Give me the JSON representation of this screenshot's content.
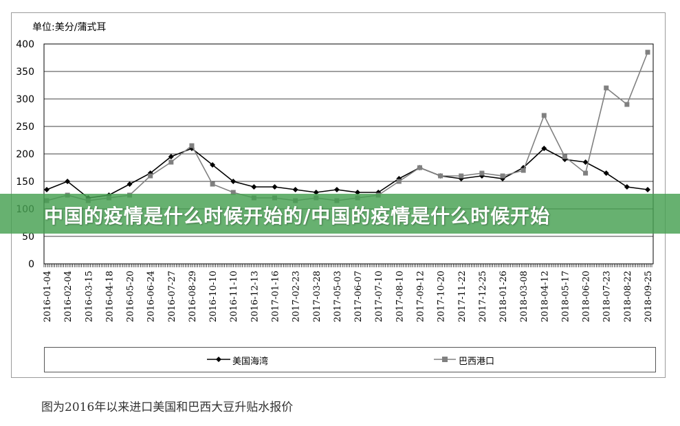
{
  "banner": {
    "text": "中国的疫情是什么时候开始的/中国的疫情是什么时候开始"
  },
  "caption": {
    "text": "图为2016年以来进口美国和巴西大豆升贴水报价"
  },
  "chart_data": {
    "type": "line",
    "unit_label": "单位:美分/蒲式耳",
    "ylim": [
      0,
      400
    ],
    "yticks": [
      0,
      50,
      100,
      150,
      200,
      250,
      300,
      350,
      400
    ],
    "grid": true,
    "legend_position": "bottom",
    "categories": [
      "2016-01-04",
      "2016-02-04",
      "2016-03-15",
      "2016-04-18",
      "2016-05-20",
      "2016-06-24",
      "2016-07-27",
      "2016-08-29",
      "2016-10-10",
      "2016-11-10",
      "2016-12-13",
      "2017-01-16",
      "2017-02-23",
      "2017-03-28",
      "2017-05-03",
      "2017-06-07",
      "2017-07-10",
      "2017-08-10",
      "2017-09-12",
      "2017-10-20",
      "2017-11-22",
      "2017-12-25",
      "2018-01-26",
      "2018-03-08",
      "2018-04-12",
      "2018-05-17",
      "2018-06-20",
      "2018-07-23",
      "2018-08-22",
      "2018-09-25"
    ],
    "series": [
      {
        "name": "美国海湾",
        "color": "#000000",
        "marker": "diamond",
        "values": [
          135,
          150,
          120,
          125,
          145,
          165,
          195,
          210,
          180,
          150,
          140,
          140,
          135,
          130,
          135,
          130,
          130,
          155,
          175,
          160,
          155,
          160,
          155,
          175,
          210,
          190,
          185,
          165,
          140,
          135
        ]
      },
      {
        "name": "巴西港口",
        "color": "#808080",
        "marker": "square",
        "values": [
          115,
          125,
          115,
          120,
          125,
          160,
          185,
          215,
          145,
          130,
          120,
          120,
          115,
          120,
          115,
          120,
          125,
          150,
          175,
          160,
          160,
          165,
          160,
          170,
          270,
          195,
          165,
          320,
          290,
          385
        ]
      }
    ]
  }
}
